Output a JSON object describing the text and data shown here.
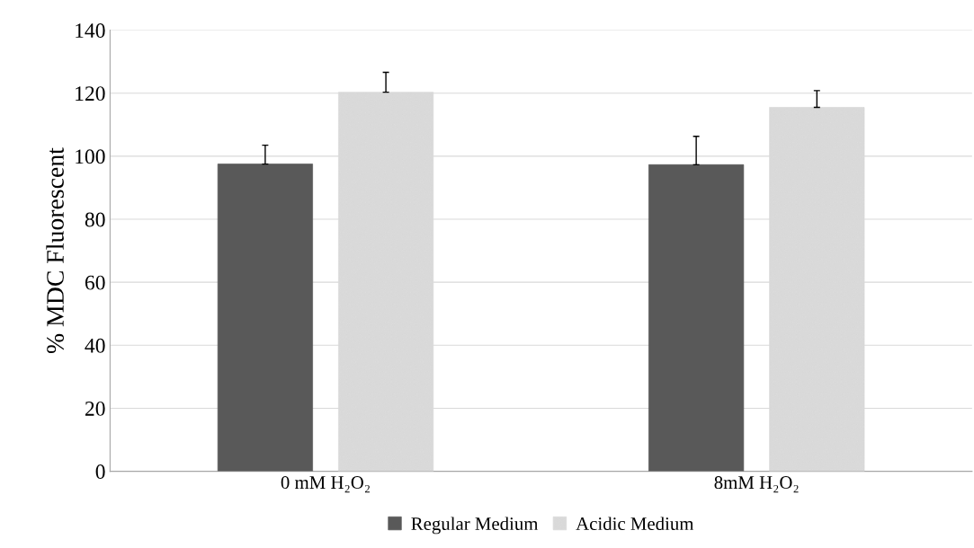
{
  "chart_data": {
    "type": "bar",
    "ylabel": "% MDC Fluorescent",
    "categories": [
      "0 mM H₂O₂",
      "8mM H₂O₂"
    ],
    "series": [
      {
        "name": "Regular Medium",
        "color": "#595959",
        "values": [
          97.5,
          97.3
        ],
        "errors": [
          6,
          9
        ]
      },
      {
        "name": "Acidic Medium",
        "color": "#d9d9d9",
        "values": [
          120.3,
          115.5
        ],
        "errors": [
          6.3,
          5.3
        ]
      }
    ],
    "ylim": [
      0,
      140
    ],
    "yticks": [
      0,
      20,
      40,
      60,
      80,
      100,
      120,
      140
    ],
    "grid": "y",
    "legend": "bottom"
  }
}
